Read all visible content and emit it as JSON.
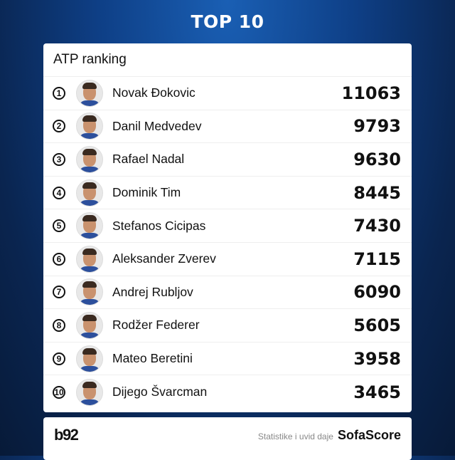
{
  "title": "TOP 10",
  "card_title": "ATP ranking",
  "players": [
    {
      "rank": "1",
      "name": "Novak Đokovic",
      "points": "11063"
    },
    {
      "rank": "2",
      "name": "Danil Medvedev",
      "points": "9793"
    },
    {
      "rank": "3",
      "name": "Rafael Nadal",
      "points": "9630"
    },
    {
      "rank": "4",
      "name": "Dominik Tim",
      "points": "8445"
    },
    {
      "rank": "5",
      "name": "Stefanos Cicipas",
      "points": "7430"
    },
    {
      "rank": "6",
      "name": "Aleksander Zverev",
      "points": "7115"
    },
    {
      "rank": "7",
      "name": "Andrej Rubljov",
      "points": "6090"
    },
    {
      "rank": "8",
      "name": "Rodžer Federer",
      "points": "5605"
    },
    {
      "rank": "9",
      "name": "Mateo Beretini",
      "points": "3958"
    },
    {
      "rank": "10",
      "name": "Dijego Švarcman",
      "points": "3465"
    }
  ],
  "footer": {
    "logo": "b92",
    "credit": "Statistike i uvid daje",
    "brand": "SofaScore"
  }
}
